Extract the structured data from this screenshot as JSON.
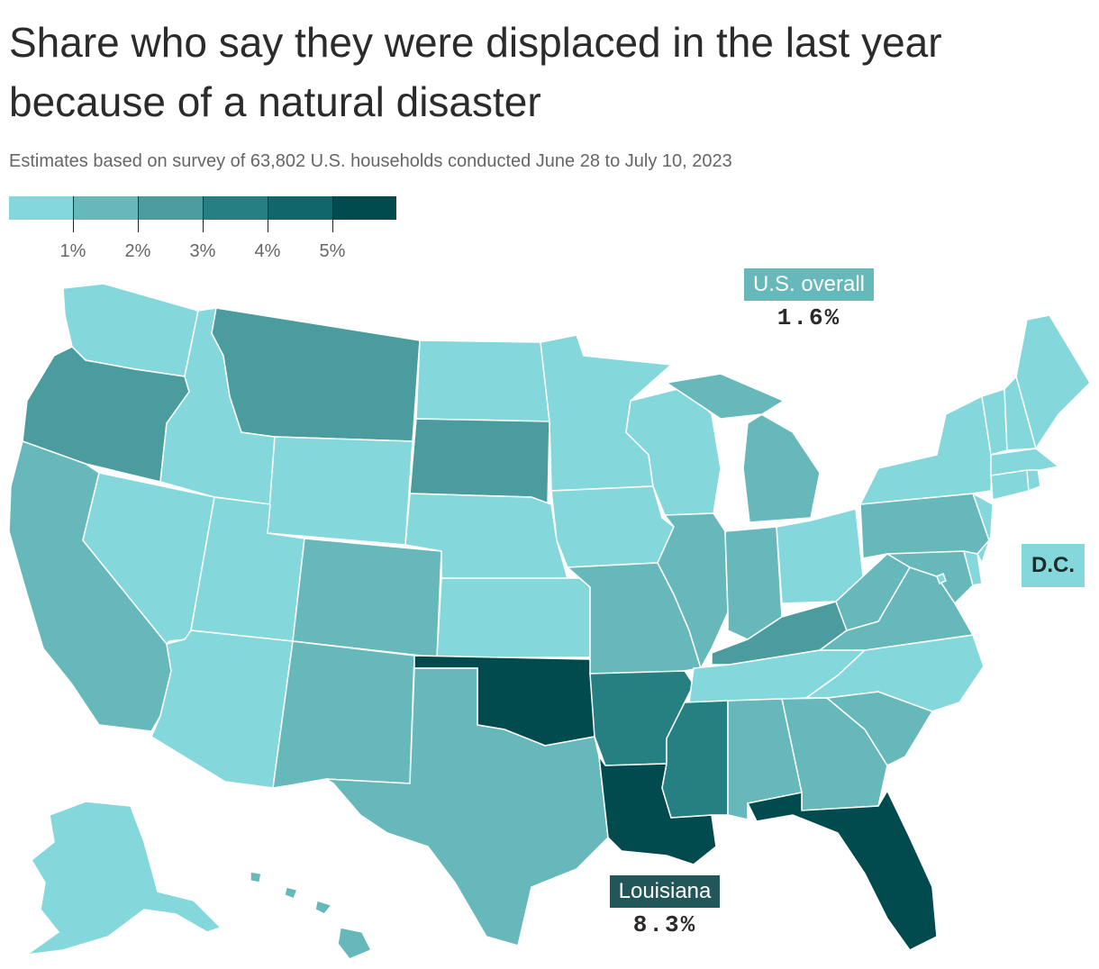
{
  "title": "Share who say they were displaced in the last year because of a natural disaster",
  "subtitle": "Estimates based on survey of 63,802 U.S. households conducted June 28 to July 10, 2023",
  "legend": {
    "colors": [
      "#84d8db",
      "#66b8ba",
      "#4a9c9e",
      "#268082",
      "#11666a",
      "#014b4e"
    ],
    "ticks": [
      "1%",
      "2%",
      "3%",
      "4%",
      "5%"
    ]
  },
  "callouts": {
    "us": {
      "name": "U.S. overall",
      "value": "1.6%",
      "color": "#66b8ba"
    },
    "louisiana": {
      "name": "Louisiana",
      "value": "8.3%",
      "color": "#22575a"
    },
    "dc": {
      "name": "D.C."
    }
  },
  "map_data": {
    "bins": [
      "under 1%",
      "1–2%",
      "2–3%",
      "3–4%",
      "4–5%",
      "5%+"
    ],
    "states": {
      "WA": "under 1%",
      "OR": "2–3%",
      "CA": "1–2%",
      "NV": "under 1%",
      "ID": "under 1%",
      "MT": "2–3%",
      "WY": "under 1%",
      "UT": "under 1%",
      "AZ": "under 1%",
      "CO": "1–2%",
      "NM": "1–2%",
      "ND": "under 1%",
      "SD": "2–3%",
      "NE": "under 1%",
      "KS": "under 1%",
      "OK": "5%+",
      "TX": "1–2%",
      "MN": "under 1%",
      "IA": "under 1%",
      "MO": "1–2%",
      "AR": "3–4%",
      "LA": "5%+",
      "WI": "under 1%",
      "IL": "1–2%",
      "MI": "1–2%",
      "IN": "1–2%",
      "OH": "under 1%",
      "KY": "2–3%",
      "TN": "under 1%",
      "MS": "3–4%",
      "AL": "1–2%",
      "GA": "1–2%",
      "FL": "5%+",
      "SC": "1–2%",
      "NC": "under 1%",
      "VA": "1–2%",
      "WV": "1–2%",
      "PA": "1–2%",
      "NY": "under 1%",
      "NJ": "under 1%",
      "DE": "under 1%",
      "MD": "1–2%",
      "DC": "under 1%",
      "CT": "under 1%",
      "RI": "under 1%",
      "MA": "under 1%",
      "VT": "under 1%",
      "NH": "under 1%",
      "ME": "under 1%",
      "AK": "under 1%",
      "HI": "1–2%"
    }
  }
}
